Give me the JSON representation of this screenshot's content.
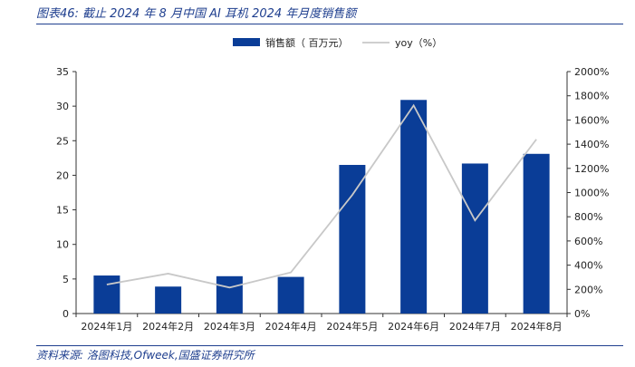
{
  "figure": {
    "title": "图表46:  截止 2024 年 8 月中国 AI 耳机 2024 年月度销售额",
    "source": "资料来源:  洛图科技,Ofweek,国盛证券研究所"
  },
  "colors": {
    "bar": "#0a3d97",
    "line": "#c8c8c8",
    "axis": "#333333",
    "title": "#1f3f8f"
  },
  "chart_data": {
    "type": "bar",
    "categories": [
      "2024年1月",
      "2024年2月",
      "2024年3月",
      "2024年4月",
      "2024年5月",
      "2024年6月",
      "2024年7月",
      "2024年8月"
    ],
    "series": [
      {
        "name": "销售额（ 百万元）",
        "type": "bar",
        "axis": "left",
        "values": [
          5.5,
          3.9,
          5.4,
          5.3,
          21.5,
          30.9,
          21.7,
          23.1
        ]
      },
      {
        "name": "yoy（%）",
        "type": "line",
        "axis": "right",
        "values": [
          240,
          330,
          215,
          340,
          980,
          1720,
          770,
          1440
        ]
      }
    ],
    "ylim_left": [
      0,
      35
    ],
    "yticks_left": [
      "0",
      "5",
      "10",
      "15",
      "20",
      "25",
      "30",
      "35"
    ],
    "ylim_right": [
      0,
      2000
    ],
    "yticks_right": [
      "0%",
      "200%",
      "400%",
      "600%",
      "800%",
      "1000%",
      "1200%",
      "1400%",
      "1600%",
      "1800%",
      "2000%"
    ],
    "grid": false,
    "legend_position": "top-center"
  }
}
